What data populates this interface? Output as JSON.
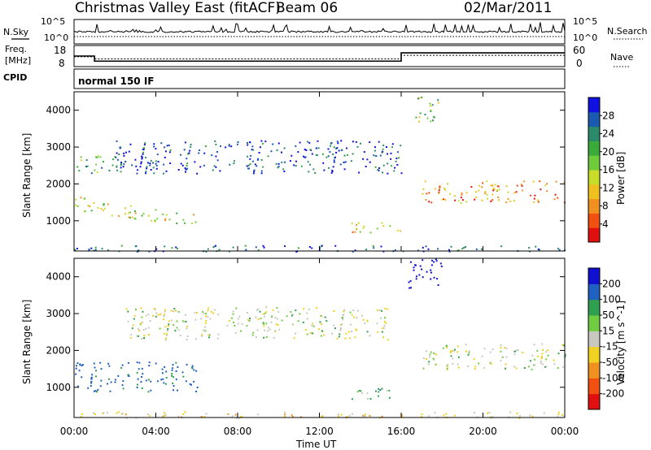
{
  "header": {
    "station": "Christmas Valley East (fitACF)",
    "beam": "Beam 06",
    "date": "02/Mar/2011"
  },
  "meta_panels": {
    "nsky_label": "N.Sky",
    "nsearch_label": "N.Search",
    "freq_label_line1": "Freq.",
    "freq_label_line2": "[MHz]",
    "nave_label": "Nave",
    "cpid_label": "CPID",
    "cpid_value": "normal 150 IF",
    "noise_ticks_left": [
      "10^5",
      "10^0"
    ],
    "noise_ticks_right": [
      "10^5",
      "10^0"
    ],
    "freq_ticks": [
      "18",
      "8"
    ],
    "nave_ticks": [
      "60",
      "0"
    ]
  },
  "axes": {
    "ylabel": "Slant Range [km]",
    "xlabel": "Time UT",
    "xticks": [
      "00:00",
      "04:00",
      "08:00",
      "12:00",
      "16:00",
      "20:00",
      "00:00"
    ],
    "yticks": [
      "1000",
      "2000",
      "3000",
      "4000"
    ]
  },
  "power_colorbar": {
    "label": "Power [dB]",
    "ticks": [
      "4",
      "8",
      "12",
      "16",
      "20",
      "24",
      "28"
    ],
    "colors": [
      "#1010e0",
      "#1a5ab0",
      "#2a8a6a",
      "#3aaa3a",
      "#6ecc3a",
      "#c8dc2a",
      "#f0c020",
      "#f09020",
      "#f05010",
      "#e01010"
    ]
  },
  "velocity_colorbar": {
    "label": "Velocity [m s^-1]",
    "ticks": [
      "200",
      "100",
      "50",
      "15",
      "-15",
      "-50",
      "-100",
      "-200"
    ],
    "colors": [
      "#1010d0",
      "#2060c0",
      "#30a050",
      "#70cc40",
      "#c8c8c0",
      "#f0d020",
      "#f09020",
      "#f05010",
      "#e01010"
    ]
  },
  "chart_data": {
    "type": "heatmap",
    "x_range_hours": [
      0,
      24
    ],
    "y_range_km": [
      180,
      4500
    ],
    "power_regions": [
      {
        "t0": 0.0,
        "t1": 6.0,
        "r0": 1300,
        "r1": 1700,
        "level": 0.55,
        "note": "descending band"
      },
      {
        "t0": 0.0,
        "t1": 2.5,
        "r0": 2300,
        "r1": 2800,
        "level": 0.35
      },
      {
        "t0": 2.0,
        "t1": 16.0,
        "r0": 2300,
        "r1": 3200,
        "level": 0.12
      },
      {
        "t0": 13.5,
        "t1": 16.0,
        "r0": 700,
        "r1": 1000,
        "level": 0.6
      },
      {
        "t0": 16.5,
        "t1": 17.8,
        "r0": 3700,
        "r1": 4400,
        "level": 0.45
      },
      {
        "t0": 17.0,
        "t1": 24.0,
        "r0": 1500,
        "r1": 2100,
        "level": 0.75
      },
      {
        "t0": 0.0,
        "t1": 24.0,
        "r0": 180,
        "r1": 350,
        "level": 0.15
      }
    ],
    "velocity_regions": [
      {
        "t0": 0.0,
        "t1": 6.0,
        "r0": 900,
        "r1": 1700,
        "vel": 100
      },
      {
        "t0": 2.5,
        "t1": 15.5,
        "r0": 2300,
        "r1": 3200,
        "vel": 0
      },
      {
        "t0": 16.3,
        "t1": 18.0,
        "r0": 3700,
        "r1": 4500,
        "vel": 220
      },
      {
        "t0": 13.5,
        "t1": 16.0,
        "r0": 700,
        "r1": 1000,
        "vel": 40
      },
      {
        "t0": 17.0,
        "t1": 24.0,
        "r0": 1500,
        "r1": 2200,
        "vel": 0
      },
      {
        "t0": 0.0,
        "t1": 24.0,
        "r0": 180,
        "r1": 350,
        "vel": -30
      }
    ],
    "frequency_MHz": [
      {
        "t0": 0.0,
        "t1": 1.0,
        "value": 13.0
      },
      {
        "t0": 1.0,
        "t1": 16.0,
        "value": 10.6
      },
      {
        "t0": 16.0,
        "t1": 24.0,
        "value": 14.5
      }
    ],
    "nave": [
      {
        "t0": 0.0,
        "t1": 1.0,
        "value": 28
      },
      {
        "t0": 1.0,
        "t1": 16.0,
        "value": 22
      },
      {
        "t0": 16.0,
        "t1": 24.0,
        "value": 32
      }
    ]
  }
}
